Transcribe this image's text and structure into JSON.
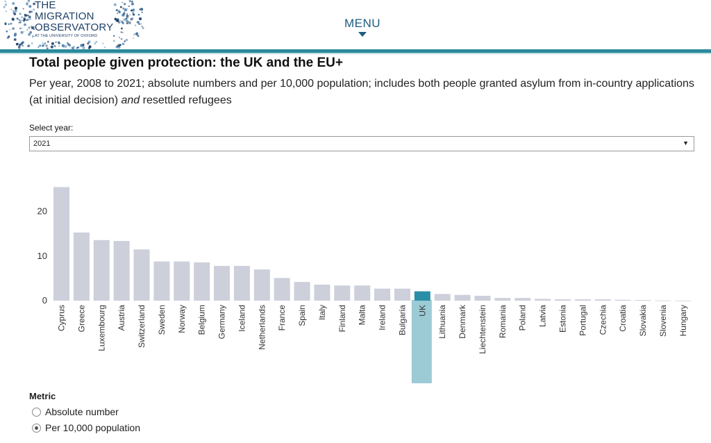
{
  "header": {
    "logo_lines": [
      "THE",
      "MIGRATION",
      "OBSERVATORY"
    ],
    "logo_small": "AT THE UNIVERSITY OF OXFORD",
    "menu_label": "MENU"
  },
  "page": {
    "title": "Total people given protection: the UK and the EU+",
    "subtitle_main": "Per year, 2008 to 2021; absolute numbers and per 10,000 population; includes both people granted asylum from in-country applications (at initial decision) ",
    "subtitle_em": "and",
    "subtitle_tail": " resettled refugees"
  },
  "filter": {
    "label": "Select year:",
    "value": "2021"
  },
  "metric": {
    "title": "Metric",
    "options": [
      {
        "label": "Absolute number",
        "selected": false
      },
      {
        "label": "Per 10,000 population",
        "selected": true
      }
    ]
  },
  "colors": {
    "bar": "#cdcfdb",
    "highlight": "#2a8fa6",
    "highlight_band": "#9ccbd6",
    "accent": "#2b8a9c"
  },
  "chart_data": {
    "type": "bar",
    "categories": [
      "Cyprus",
      "Greece",
      "Luxembourg",
      "Austria",
      "Switzerland",
      "Sweden",
      "Norway",
      "Belgium",
      "Germany",
      "Iceland",
      "Netherlands",
      "France",
      "Spain",
      "Italy",
      "Finland",
      "Malta",
      "Ireland",
      "Bulgaria",
      "UK",
      "Lithuania",
      "Denmark",
      "Liechtenstein",
      "Romania",
      "Poland",
      "Latvia",
      "Estonia",
      "Portugal",
      "Czechia",
      "Croatia",
      "Slovakia",
      "Slovenia",
      "Hungary"
    ],
    "values": [
      25.5,
      15.3,
      13.6,
      13.4,
      11.5,
      8.8,
      8.8,
      8.6,
      7.8,
      7.8,
      7.0,
      5.1,
      4.2,
      3.6,
      3.4,
      3.4,
      2.7,
      2.7,
      2.1,
      1.5,
      1.3,
      1.1,
      0.6,
      0.6,
      0.4,
      0.3,
      0.3,
      0.3,
      0.2,
      0.15,
      0.05,
      0.02
    ],
    "highlight": "UK",
    "yticks": [
      0,
      10,
      20
    ],
    "ylim": [
      -1.4,
      26.5
    ],
    "xlabel": "",
    "ylabel": "",
    "grid": false
  }
}
